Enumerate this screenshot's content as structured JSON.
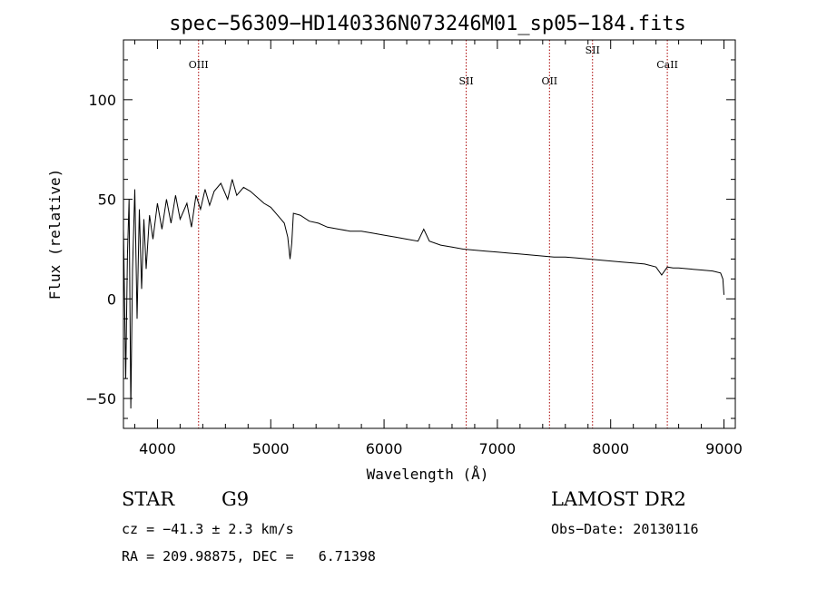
{
  "chart_data": {
    "type": "line",
    "title": "spec−56309−HD140336N073246M01_sp05−184.fits",
    "xlabel": "Wavelength (Å)",
    "ylabel": "Flux (relative)",
    "xlim": [
      3700,
      9100
    ],
    "ylim": [
      -65,
      130
    ],
    "xticks": [
      4000,
      5000,
      6000,
      7000,
      8000,
      9000
    ],
    "yticks": [
      -50,
      0,
      50,
      100
    ],
    "tick_labels": {
      "x": [
        "4000",
        "5000",
        "6000",
        "7000",
        "8000",
        "9000"
      ],
      "y": [
        "−50",
        "0",
        "50",
        "100"
      ]
    },
    "grid": false,
    "series": [
      {
        "color": "#000000",
        "x": [
          3700,
          3720,
          3735,
          3750,
          3765,
          3780,
          3800,
          3820,
          3840,
          3860,
          3880,
          3900,
          3930,
          3960,
          4000,
          4040,
          4080,
          4120,
          4160,
          4200,
          4260,
          4300,
          4340,
          4380,
          4420,
          4460,
          4500,
          4560,
          4620,
          4660,
          4700,
          4760,
          4820,
          4880,
          4940,
          5000,
          5060,
          5120,
          5150,
          5170,
          5185,
          5200,
          5260,
          5340,
          5420,
          5500,
          5600,
          5700,
          5800,
          5900,
          6000,
          6100,
          6200,
          6300,
          6350,
          6400,
          6500,
          6600,
          6700,
          6800,
          6900,
          7000,
          7100,
          7200,
          7300,
          7400,
          7500,
          7600,
          7700,
          7800,
          7900,
          8000,
          8100,
          8200,
          8300,
          8400,
          8450,
          8500,
          8550,
          8600,
          8700,
          8800,
          8900,
          8970,
          8990,
          9000
        ],
        "y": [
          35,
          -40,
          22,
          50,
          -55,
          15,
          55,
          -10,
          45,
          5,
          40,
          15,
          42,
          30,
          48,
          35,
          50,
          38,
          52,
          40,
          48,
          36,
          52,
          45,
          55,
          47,
          54,
          58,
          50,
          60,
          52,
          56,
          54,
          51,
          48,
          46,
          42,
          38,
          31,
          20,
          28,
          43,
          42,
          39,
          38,
          36,
          35,
          34,
          34,
          33,
          32,
          31,
          30,
          29,
          35,
          29,
          27,
          26,
          25,
          24.5,
          24,
          23.5,
          23,
          22.5,
          22,
          21.5,
          21,
          21,
          20.5,
          20,
          19.5,
          19,
          18.5,
          18,
          17.5,
          16,
          12,
          16,
          15.5,
          15.5,
          15,
          14.5,
          14,
          13,
          10,
          2
        ]
      }
    ],
    "spectral_lines": [
      {
        "label": "OIII",
        "x": 4363
      },
      {
        "label": "SII",
        "x": 6725
      },
      {
        "label": "OII",
        "x": 7460
      },
      {
        "label": "SII",
        "x": 7840
      },
      {
        "label": "CaII",
        "x": 8500
      }
    ],
    "line_color": "#aa0000"
  },
  "info": {
    "class_label": "STAR",
    "subclass": "G9",
    "survey": "LAMOST DR2",
    "cz": "cz = −41.3 ± 2.3 km/s",
    "obs_date": "Obs−Date: 20130116",
    "radec": "RA = 209.98875, DEC =   6.71398"
  }
}
